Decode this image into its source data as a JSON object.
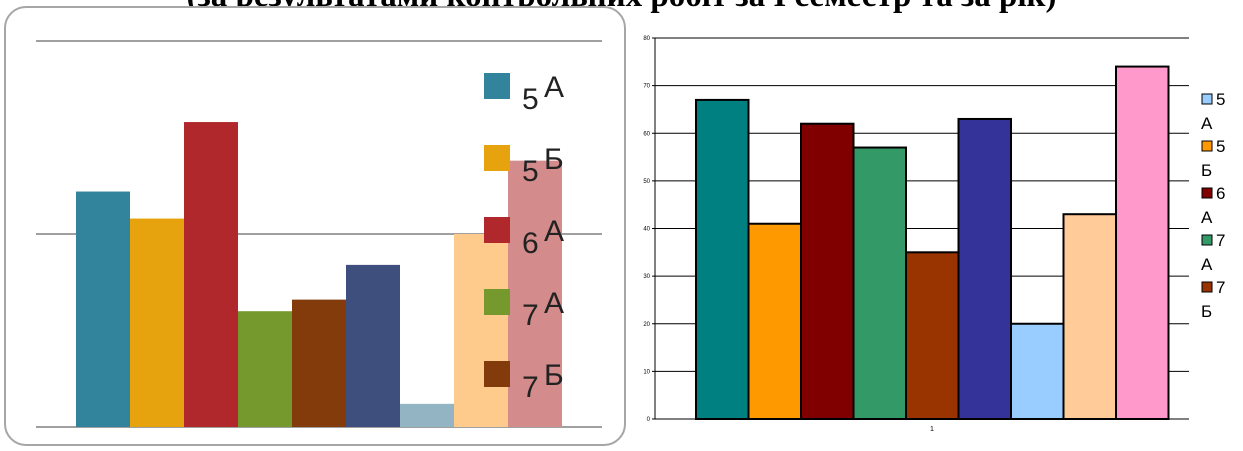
{
  "header": {
    "title": "(за результатами контрольних робіт за І семестр та за рік)"
  },
  "chart_data": [
    {
      "type": "bar",
      "categories": [
        ""
      ],
      "series": [
        {
          "name": "5 А",
          "values": [
            61
          ],
          "color": "#31849b"
        },
        {
          "name": "5Б",
          "values": [
            54
          ],
          "color": "#e6a30d"
        },
        {
          "name": "6А",
          "values": [
            79
          ],
          "color": "#b0282c"
        },
        {
          "name": "7 А",
          "values": [
            30
          ],
          "color": "#76992e"
        },
        {
          "name": "7 Б",
          "values": [
            33
          ],
          "color": "#843b0c"
        },
        {
          "name": "",
          "values": [
            42
          ],
          "color": "#3f4f7d"
        },
        {
          "name": "",
          "values": [
            6
          ],
          "color": "#92b4c3"
        },
        {
          "name": "",
          "values": [
            50
          ],
          "color": "#fecb8c"
        },
        {
          "name": "",
          "values": [
            69
          ],
          "color": "#d38c8b"
        }
      ],
      "gridlines": 3,
      "legend": "right",
      "legend_entries": [
        {
          "number": "5",
          "letter": "А",
          "color": "#31849b"
        },
        {
          "number": "5",
          "letter": "Б",
          "color": "#e6a30d"
        },
        {
          "number": "6",
          "letter": "А",
          "color": "#b0282c"
        },
        {
          "number": "7",
          "letter": "А",
          "color": "#76992e"
        },
        {
          "number": "7",
          "letter": "Б",
          "color": "#843b0c"
        }
      ]
    },
    {
      "type": "bar",
      "categories": [
        "1"
      ],
      "series": [
        {
          "name": "",
          "values": [
            67
          ],
          "color": "#008080"
        },
        {
          "name": "5 Б",
          "values": [
            41
          ],
          "color": "#ff9900"
        },
        {
          "name": "6 А",
          "values": [
            62
          ],
          "color": "#800000"
        },
        {
          "name": "7 А",
          "values": [
            57
          ],
          "color": "#339966"
        },
        {
          "name": "7 Б",
          "values": [
            35
          ],
          "color": "#993300"
        },
        {
          "name": "",
          "values": [
            63
          ],
          "color": "#333399"
        },
        {
          "name": "5 А",
          "values": [
            20
          ],
          "color": "#99ccff"
        },
        {
          "name": "",
          "values": [
            43
          ],
          "color": "#ffcc99"
        },
        {
          "name": "",
          "values": [
            74
          ],
          "color": "#ff99cc"
        }
      ],
      "yticks": [
        "0",
        "10",
        "20",
        "30",
        "40",
        "50",
        "60",
        "70",
        "80"
      ],
      "ylim": [
        0,
        80
      ],
      "grid": true,
      "legend": "right",
      "legend_entries": [
        {
          "number": "5",
          "letter": "А",
          "color": "#99ccff"
        },
        {
          "number": "5",
          "letter": "Б",
          "color": "#ff9900"
        },
        {
          "number": "6",
          "letter": "А",
          "color": "#800000"
        },
        {
          "number": "7",
          "letter": "А",
          "color": "#339966"
        },
        {
          "number": "7",
          "letter": "Б",
          "color": "#993300"
        }
      ]
    }
  ]
}
